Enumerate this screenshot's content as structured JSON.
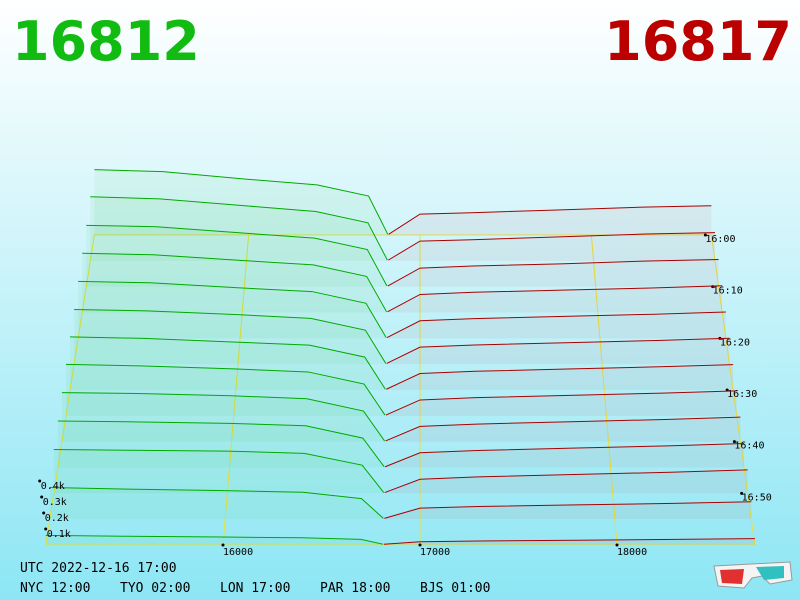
{
  "chart_data": {
    "type": "depth3d",
    "best_bid": 16812,
    "best_ask": 16817,
    "bid_color": "#00aa00",
    "ask_color": "#aa0000",
    "footer": {
      "utc": "UTC 2022-12-16 17:00",
      "zones": [
        "NYC 12:00",
        "TYO 02:00",
        "LON 17:00",
        "PAR 18:00",
        "BJS 01:00"
      ]
    },
    "xlim": [
      15100,
      18700
    ],
    "xticks": [
      16000,
      17000,
      18000
    ],
    "zticks": [
      {
        "value": 100,
        "label": "0.1k"
      },
      {
        "value": 200,
        "label": "0.2k"
      },
      {
        "value": 300,
        "label": "0.3k"
      },
      {
        "value": 400,
        "label": "0.4k"
      }
    ],
    "times": [
      "16:00",
      null,
      "16:10",
      null,
      "16:20",
      null,
      "16:30",
      null,
      "16:40",
      null,
      "16:50",
      null,
      null
    ],
    "bid_prices": [
      15100,
      15500,
      16000,
      16400,
      16700,
      16812
    ],
    "ask_prices": [
      16817,
      17000,
      17300,
      17800,
      18300,
      18700
    ],
    "bids": [
      [
        470,
        455,
        400,
        360,
        280,
        5
      ],
      [
        455,
        440,
        390,
        350,
        270,
        5
      ],
      [
        430,
        420,
        375,
        340,
        260,
        5
      ],
      [
        410,
        400,
        360,
        330,
        250,
        5
      ],
      [
        390,
        380,
        345,
        320,
        240,
        5
      ],
      [
        370,
        360,
        335,
        310,
        230,
        5
      ],
      [
        355,
        345,
        320,
        300,
        220,
        5
      ],
      [
        340,
        330,
        310,
        290,
        210,
        5
      ],
      [
        320,
        315,
        300,
        280,
        200,
        5
      ],
      [
        300,
        295,
        285,
        270,
        190,
        5
      ],
      [
        280,
        275,
        270,
        255,
        180,
        5
      ],
      [
        200,
        190,
        180,
        170,
        130,
        5
      ],
      [
        60,
        55,
        50,
        45,
        35,
        5
      ]
    ],
    "asks": [
      [
        5,
        150,
        160,
        180,
        200,
        210
      ],
      [
        5,
        140,
        150,
        170,
        190,
        200
      ],
      [
        5,
        130,
        145,
        160,
        180,
        190
      ],
      [
        5,
        125,
        140,
        155,
        170,
        185
      ],
      [
        5,
        120,
        135,
        150,
        165,
        180
      ],
      [
        5,
        115,
        130,
        145,
        160,
        175
      ],
      [
        5,
        110,
        125,
        140,
        155,
        170
      ],
      [
        5,
        105,
        120,
        135,
        150,
        165
      ],
      [
        5,
        100,
        115,
        130,
        145,
        160
      ],
      [
        5,
        95,
        110,
        125,
        140,
        155
      ],
      [
        5,
        90,
        105,
        120,
        135,
        150
      ],
      [
        5,
        70,
        80,
        90,
        100,
        110
      ],
      [
        5,
        20,
        25,
        30,
        35,
        40
      ]
    ]
  }
}
